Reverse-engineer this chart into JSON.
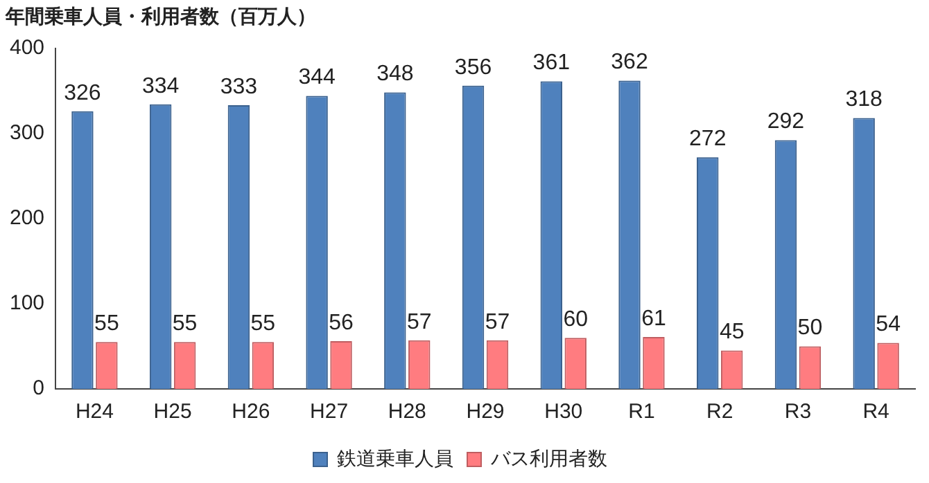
{
  "chart_data": {
    "type": "bar",
    "title": "年間乗車人員・利用者数（百万人）",
    "categories": [
      "H24",
      "H25",
      "H26",
      "H27",
      "H28",
      "H29",
      "H30",
      "R1",
      "R2",
      "R3",
      "R4"
    ],
    "series": [
      {
        "name": "鉄道乗車人員",
        "color": "#4f81bd",
        "values": [
          326,
          334,
          333,
          344,
          348,
          356,
          361,
          362,
          272,
          292,
          318
        ]
      },
      {
        "name": "バス利用者数",
        "color": "#ff7c80",
        "values": [
          55,
          55,
          55,
          56,
          57,
          57,
          60,
          61,
          45,
          50,
          54
        ]
      }
    ],
    "ylim": [
      0,
      400
    ],
    "yticks": [
      0,
      100,
      200,
      300,
      400
    ],
    "grid": false,
    "legend": "bottom",
    "data_labels": true
  }
}
